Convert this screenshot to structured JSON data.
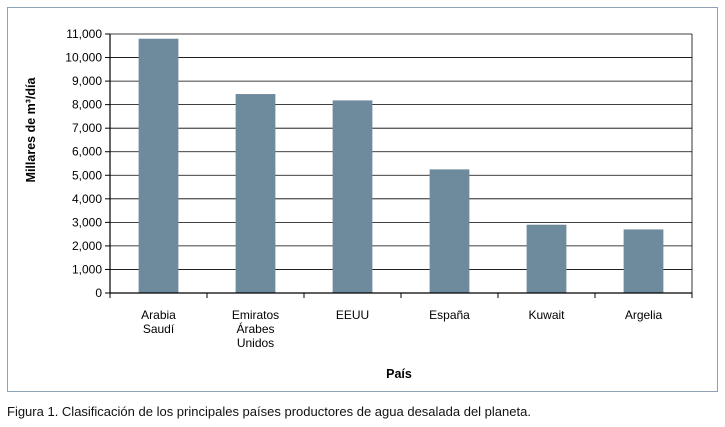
{
  "chart_data": {
    "type": "bar",
    "categories": [
      [
        "Arabia",
        "Saudí"
      ],
      [
        "Emiratos",
        "Árabes",
        "Unidos"
      ],
      [
        "EEUU"
      ],
      [
        "España"
      ],
      [
        "Kuwait"
      ],
      [
        "Argelia"
      ]
    ],
    "values": [
      10800,
      8450,
      8180,
      5250,
      2900,
      2700
    ],
    "xlabel": "País",
    "ylabel": "Millares de m³/día",
    "ylim": [
      0,
      11000
    ],
    "yticks": [
      "0",
      "1,000",
      "2,000",
      "3,000",
      "4,000",
      "5,000",
      "6,000",
      "7,000",
      "8,000",
      "9,000",
      "10,000",
      "11,000"
    ],
    "grid": true,
    "bar_color": "#6e8b9e"
  },
  "caption": "Figura 1. Clasificación de los principales países productores de agua desalada del planeta."
}
